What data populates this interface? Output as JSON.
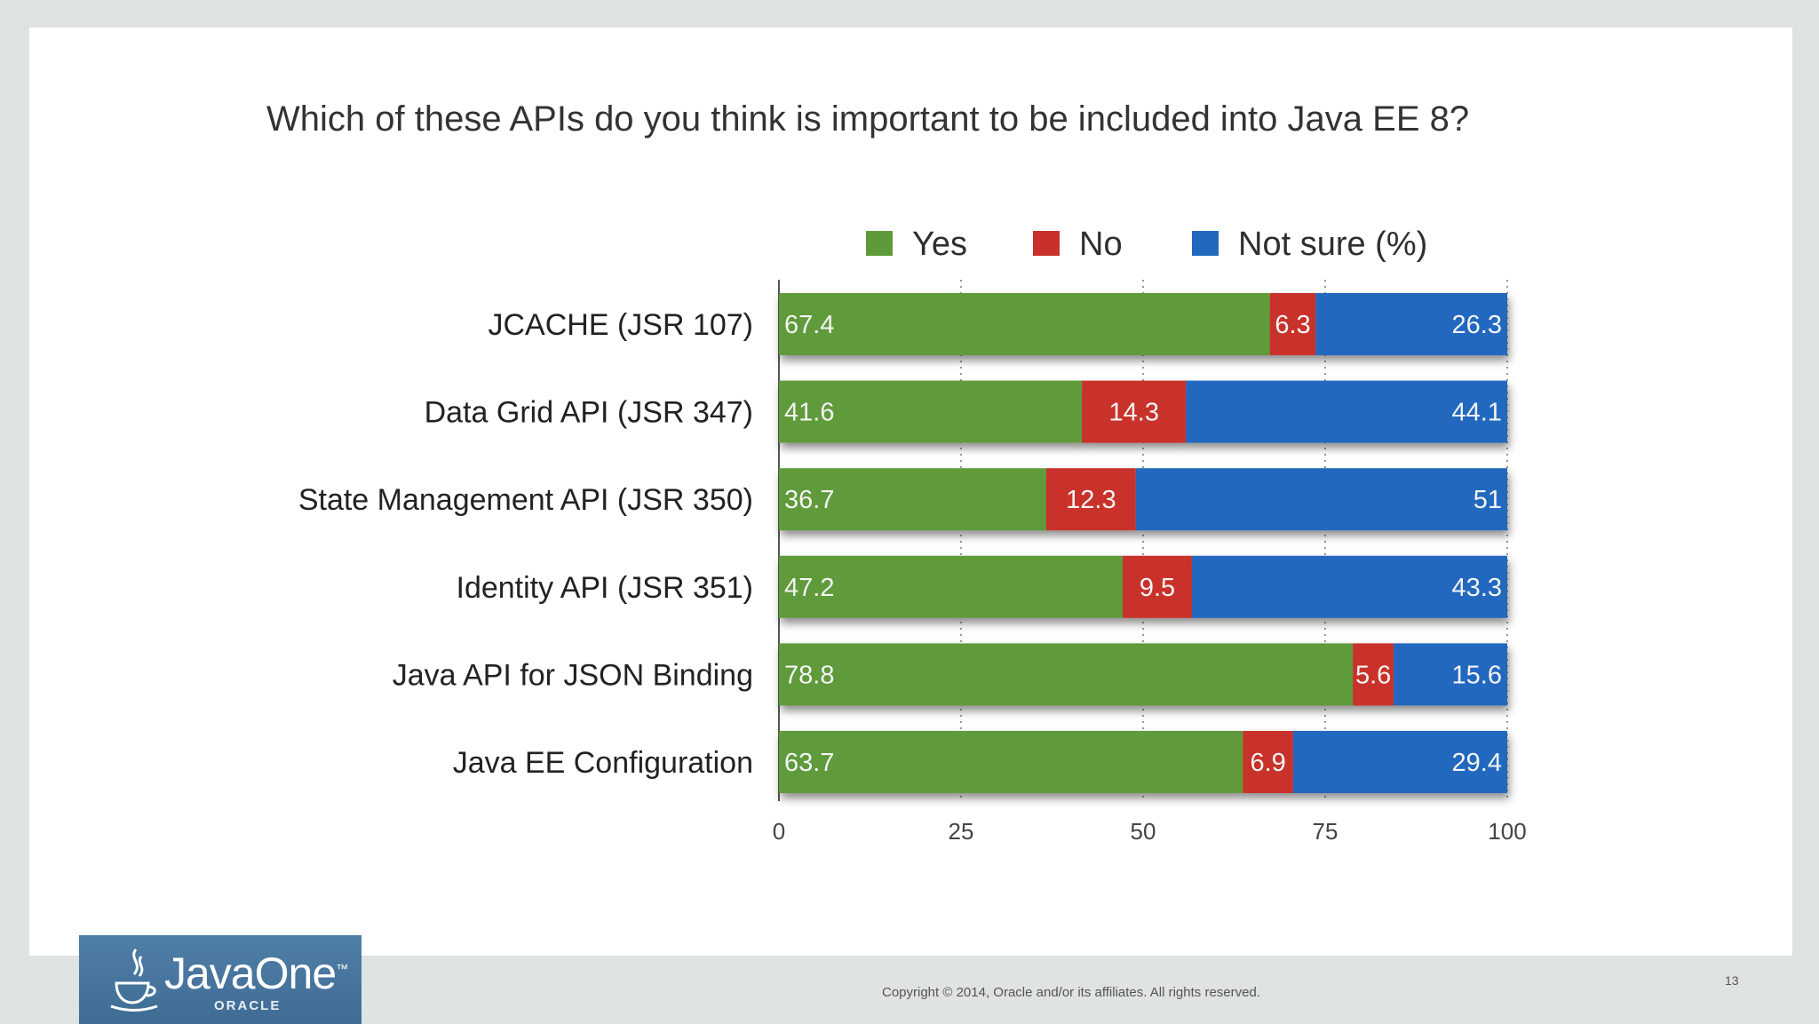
{
  "slide": {
    "title": "Which of these APIs do you think is important to be included into Java EE 8?",
    "copyright": "Copyright © 2014, Oracle and/or its affiliates. All rights reserved.",
    "page_number": "13",
    "logo": {
      "brand": "JavaOne",
      "trademark": "™",
      "sub": "ORACLE"
    }
  },
  "chart_data": {
    "type": "bar",
    "orientation": "horizontal",
    "stacked": true,
    "title": "Which of these APIs do you think is important to be included into Java EE 8?",
    "categories": [
      "JCACHE (JSR 107)",
      "Data Grid API (JSR 347)",
      "State Management API (JSR 350)",
      "Identity API (JSR 351)",
      "Java API for JSON Binding",
      "Java EE Configuration"
    ],
    "series": [
      {
        "name": "Yes",
        "color": "#5e9a3a",
        "values": [
          67.4,
          41.6,
          36.7,
          47.2,
          78.8,
          63.7
        ]
      },
      {
        "name": "No",
        "color": "#c8302c",
        "values": [
          6.3,
          14.3,
          12.3,
          9.5,
          5.6,
          6.9
        ]
      },
      {
        "name": "Not sure (%)",
        "color": "#2168bf",
        "values": [
          26.3,
          44.1,
          51,
          43.3,
          15.6,
          29.4
        ]
      }
    ],
    "xlim": [
      0,
      100
    ],
    "xticks": [
      0,
      25,
      50,
      75,
      100
    ],
    "grid": true,
    "legend": "top"
  }
}
